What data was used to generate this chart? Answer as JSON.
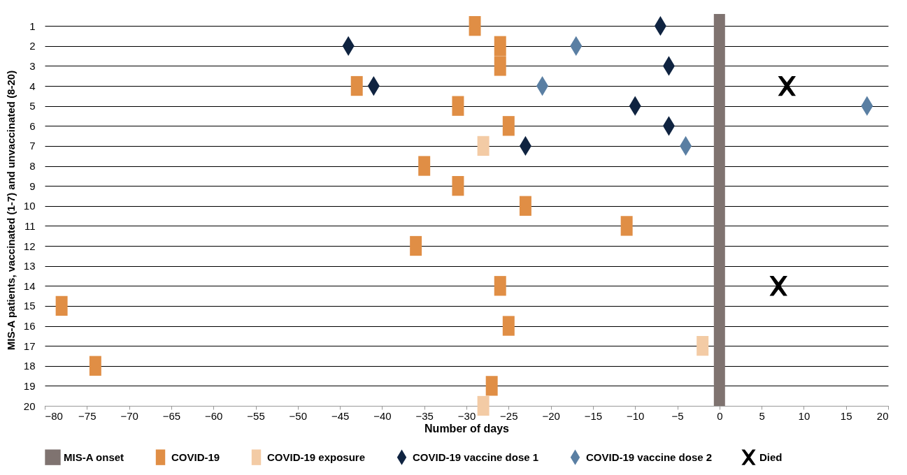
{
  "chart_data": {
    "type": "scatter",
    "xlabel": "Number of days",
    "ylabel": "MIS-A patients, vaccinated (1-7) and unvaccinated (8-20)",
    "xlim": [
      -80,
      20
    ],
    "xticks": [
      -80,
      -75,
      -70,
      -65,
      -60,
      -55,
      -50,
      -45,
      -40,
      -35,
      -30,
      -25,
      -20,
      -15,
      -10,
      -5,
      0,
      5,
      10,
      15,
      20
    ],
    "ylim": [
      20,
      0.4
    ],
    "yticks": [
      1,
      2,
      3,
      4,
      5,
      6,
      7,
      8,
      9,
      10,
      11,
      12,
      13,
      14,
      15,
      16,
      17,
      18,
      19,
      20
    ],
    "grid": "y",
    "legend": "bottom",
    "ref_lines": [
      {
        "axis": "x",
        "value": 0,
        "label": "MIS-A onset",
        "color": "#7f7370"
      }
    ],
    "series": [
      {
        "name": "COVID-19",
        "color": "#e08e45",
        "marker": "square",
        "x": [
          -29,
          -26,
          -26,
          -43,
          -31,
          -25,
          -35,
          -31,
          -23,
          -11,
          -36,
          -26,
          -78,
          -25,
          -74,
          -27
        ],
        "values": [
          1,
          2,
          3,
          4,
          5,
          6,
          8,
          9,
          10,
          11,
          12,
          14,
          15,
          16,
          18,
          19
        ]
      },
      {
        "name": "COVID-19 exposure",
        "color": "#f3cba5",
        "marker": "square",
        "x": [
          -28,
          -2,
          -28
        ],
        "values": [
          7,
          17,
          20
        ]
      },
      {
        "name": "COVID-19 vaccine dose 1",
        "color": "#0f2340",
        "marker": "diamond",
        "x": [
          -7,
          -44,
          -6,
          -41,
          -10,
          -6,
          -23
        ],
        "values": [
          1,
          2,
          3,
          4,
          5,
          6,
          7
        ]
      },
      {
        "name": "COVID-19 vaccine dose 2",
        "color": "#5a7fa3",
        "marker": "diamond",
        "x": [
          -17,
          -21,
          17.5,
          -4
        ],
        "values": [
          2,
          4,
          5,
          7
        ]
      },
      {
        "name": "Died",
        "color": "#000000",
        "marker": "cross",
        "x": [
          8,
          7
        ],
        "values": [
          4,
          14
        ]
      }
    ]
  }
}
